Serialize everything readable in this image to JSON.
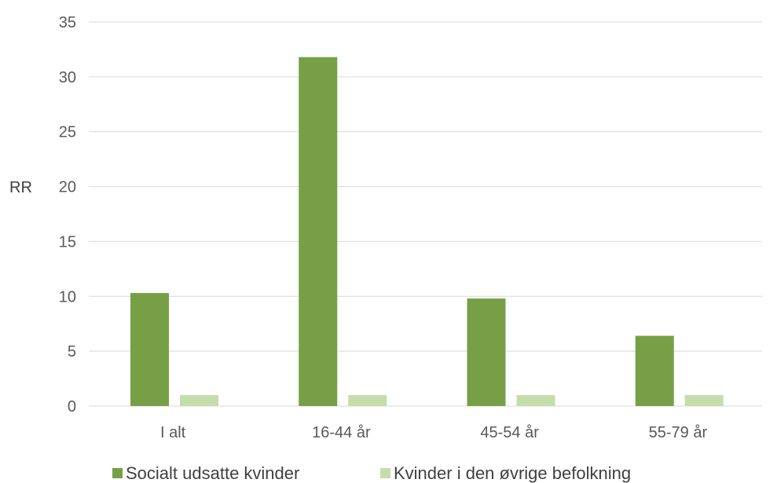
{
  "chart_data": {
    "type": "bar",
    "title": "",
    "xlabel": "",
    "ylabel": "RR",
    "ylim": [
      0,
      35
    ],
    "yticks": [
      0,
      5,
      10,
      15,
      20,
      25,
      30,
      35
    ],
    "grid": true,
    "legend_position": "bottom",
    "categories": [
      "I alt",
      "16-44 år",
      "45-54 år",
      "55-79 år"
    ],
    "series": [
      {
        "name": "Socialt udsatte kvinder",
        "color": "#77a046",
        "values": [
          10.3,
          31.8,
          9.8,
          6.4
        ]
      },
      {
        "name": "Kvinder i den øvrige befolkning",
        "color": "#c5dcac",
        "values": [
          1,
          1,
          1,
          1
        ]
      }
    ]
  }
}
